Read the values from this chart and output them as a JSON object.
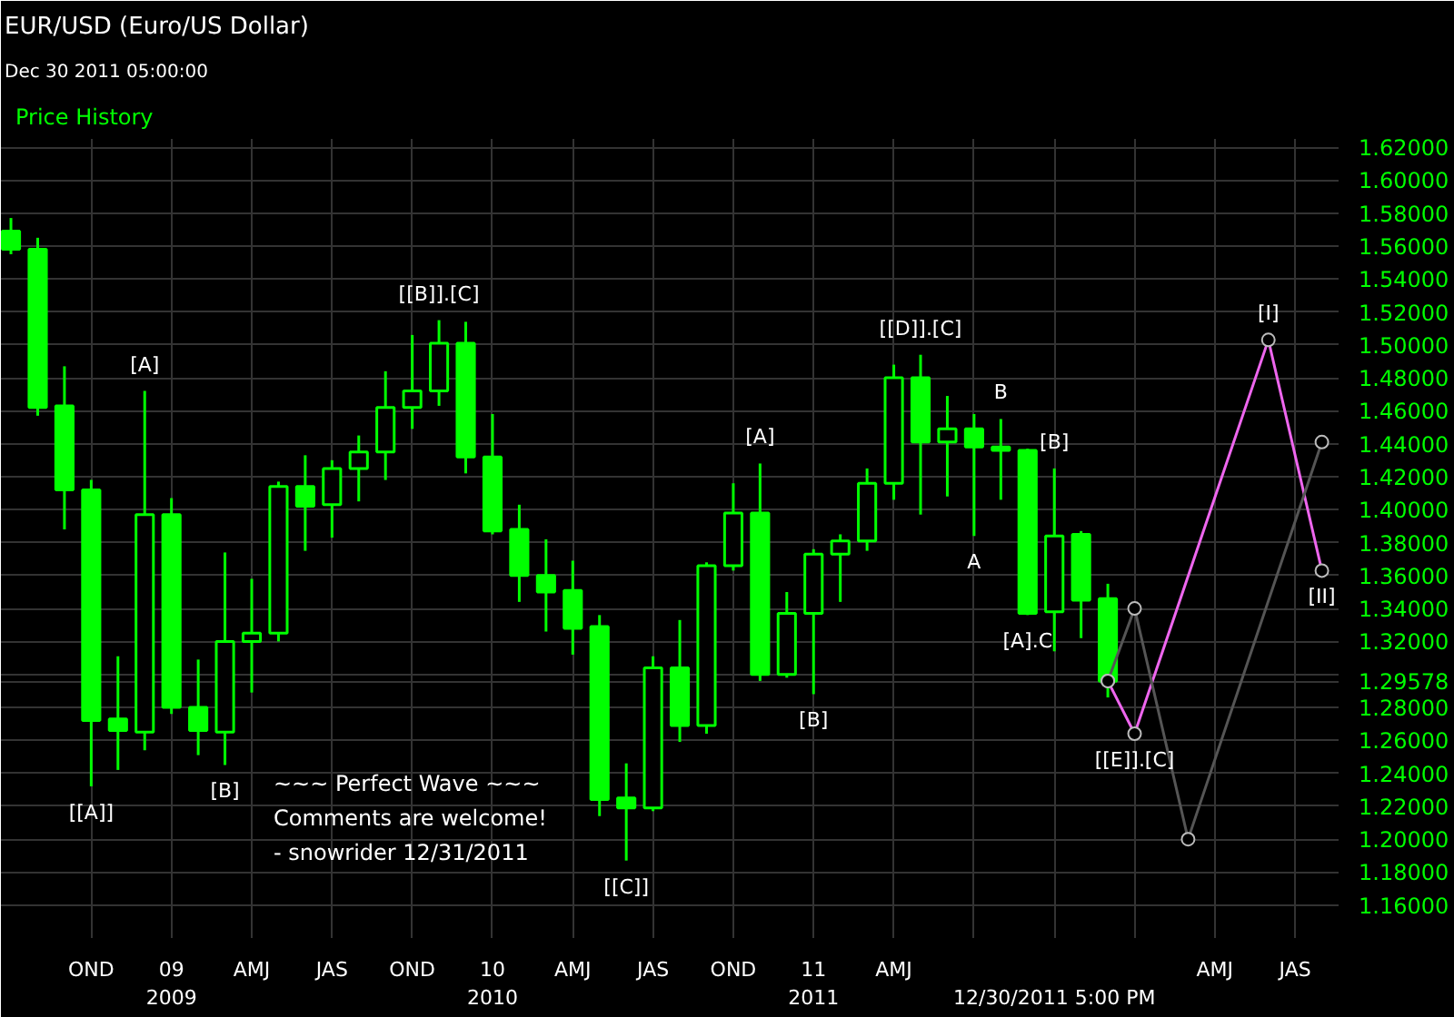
{
  "chart_data": {
    "type": "candlestick",
    "title": "EUR/USD (Euro/US Dollar)",
    "subtitle": "Dec 30 2011 05:00:00",
    "xlim": [
      "2008-06-20",
      "2012-08-20"
    ],
    "xticks": [
      {
        "value": "2008-10",
        "label": "OND"
      },
      {
        "value": "2009-01",
        "label": "09\n2009"
      },
      {
        "value": "2009-04",
        "label": "AMJ"
      },
      {
        "value": "2009-07",
        "label": "JAS"
      },
      {
        "value": "2009-10",
        "label": "OND"
      },
      {
        "value": "2010-01",
        "label": "10\n2010"
      },
      {
        "value": "2010-04",
        "label": "AMJ"
      },
      {
        "value": "2010-07",
        "label": "JAS"
      },
      {
        "value": "2010-10",
        "label": "OND"
      },
      {
        "value": "2011-01",
        "label": "11\n2011"
      },
      {
        "value": "2011-04",
        "label": "AMJ"
      },
      {
        "value": "2011-07",
        "label": null
      },
      {
        "value": "2011-10",
        "label": null
      },
      {
        "value": "2012-01",
        "label": null
      },
      {
        "value": "2012-04",
        "label": "AMJ"
      },
      {
        "value": "2012-07",
        "label": "JAS"
      }
    ],
    "ylim": [
      1.14,
      1.625
    ],
    "yticks": [
      {
        "value": 1.16,
        "label": "1.16000"
      },
      {
        "value": 1.18,
        "label": "1.18000"
      },
      {
        "value": 1.2,
        "label": "1.20000"
      },
      {
        "value": 1.22,
        "label": "1.22000"
      },
      {
        "value": 1.24,
        "label": "1.24000"
      },
      {
        "value": 1.26,
        "label": "1.26000"
      },
      {
        "value": 1.28,
        "label": "1.28000"
      },
      {
        "value": 1.29578,
        "label": "1.29578"
      },
      {
        "value": 1.3,
        "label": null
      },
      {
        "value": 1.32,
        "label": "1.32000"
      },
      {
        "value": 1.34,
        "label": "1.34000"
      },
      {
        "value": 1.36,
        "label": "1.36000"
      },
      {
        "value": 1.38,
        "label": "1.38000"
      },
      {
        "value": 1.4,
        "label": "1.40000"
      },
      {
        "value": 1.42,
        "label": "1.42000"
      },
      {
        "value": 1.44,
        "label": "1.44000"
      },
      {
        "value": 1.46,
        "label": "1.46000"
      },
      {
        "value": 1.48,
        "label": "1.48000"
      },
      {
        "value": 1.5,
        "label": "1.50000"
      },
      {
        "value": 1.52,
        "label": "1.52000"
      },
      {
        "value": 1.54,
        "label": "1.54000"
      },
      {
        "value": 1.56,
        "label": "1.56000"
      },
      {
        "value": 1.58,
        "label": "1.58000"
      },
      {
        "value": 1.6,
        "label": "1.60000"
      },
      {
        "value": 1.62,
        "label": "1.62000"
      }
    ],
    "grid": true,
    "series": [
      {
        "type": "candlestick",
        "color": "#00ff00",
        "x": [
          "2008-07",
          "2008-08",
          "2008-09",
          "2008-10",
          "2008-11",
          "2008-12",
          "2009-01",
          "2009-02",
          "2009-03",
          "2009-04",
          "2009-05",
          "2009-06",
          "2009-07",
          "2009-08",
          "2009-09",
          "2009-10",
          "2009-11",
          "2009-12",
          "2010-01",
          "2010-02",
          "2010-03",
          "2010-04",
          "2010-05",
          "2010-06",
          "2010-07",
          "2010-08",
          "2010-09",
          "2010-10",
          "2010-11",
          "2010-12",
          "2011-01",
          "2011-02",
          "2011-03",
          "2011-04",
          "2011-05",
          "2011-06",
          "2011-07",
          "2011-08",
          "2011-09",
          "2011-10",
          "2011-11",
          "2011-12"
        ],
        "ohlc": [
          [
            1.569,
            1.577,
            1.555,
            1.558
          ],
          [
            1.558,
            1.565,
            1.457,
            1.462
          ],
          [
            1.463,
            1.487,
            1.388,
            1.412
          ],
          [
            1.412,
            1.418,
            1.232,
            1.272
          ],
          [
            1.273,
            1.311,
            1.242,
            1.266
          ],
          [
            1.265,
            1.472,
            1.254,
            1.397
          ],
          [
            1.397,
            1.407,
            1.276,
            1.28
          ],
          [
            1.28,
            1.309,
            1.251,
            1.266
          ],
          [
            1.265,
            1.374,
            1.245,
            1.32
          ],
          [
            1.32,
            1.358,
            1.289,
            1.325
          ],
          [
            1.325,
            1.417,
            1.32,
            1.414
          ],
          [
            1.414,
            1.433,
            1.375,
            1.402
          ],
          [
            1.403,
            1.43,
            1.383,
            1.425
          ],
          [
            1.425,
            1.445,
            1.405,
            1.435
          ],
          [
            1.435,
            1.484,
            1.418,
            1.462
          ],
          [
            1.462,
            1.506,
            1.449,
            1.472
          ],
          [
            1.472,
            1.515,
            1.463,
            1.501
          ],
          [
            1.501,
            1.514,
            1.422,
            1.432
          ],
          [
            1.432,
            1.458,
            1.385,
            1.387
          ],
          [
            1.388,
            1.403,
            1.344,
            1.36
          ],
          [
            1.36,
            1.382,
            1.326,
            1.35
          ],
          [
            1.351,
            1.369,
            1.312,
            1.328
          ],
          [
            1.329,
            1.336,
            1.214,
            1.224
          ],
          [
            1.225,
            1.246,
            1.187,
            1.219
          ],
          [
            1.219,
            1.311,
            1.217,
            1.304
          ],
          [
            1.304,
            1.333,
            1.259,
            1.269
          ],
          [
            1.269,
            1.368,
            1.264,
            1.366
          ],
          [
            1.366,
            1.416,
            1.363,
            1.398
          ],
          [
            1.398,
            1.428,
            1.296,
            1.3
          ],
          [
            1.3,
            1.35,
            1.298,
            1.337
          ],
          [
            1.337,
            1.376,
            1.288,
            1.373
          ],
          [
            1.373,
            1.385,
            1.344,
            1.381
          ],
          [
            1.381,
            1.425,
            1.375,
            1.416
          ],
          [
            1.416,
            1.488,
            1.406,
            1.48
          ],
          [
            1.48,
            1.494,
            1.397,
            1.441
          ],
          [
            1.441,
            1.469,
            1.408,
            1.449
          ],
          [
            1.449,
            1.458,
            1.384,
            1.438
          ],
          [
            1.438,
            1.455,
            1.406,
            1.436
          ],
          [
            1.436,
            1.437,
            1.336,
            1.337
          ],
          [
            1.338,
            1.425,
            1.314,
            1.384
          ],
          [
            1.385,
            1.387,
            1.322,
            1.345
          ],
          [
            1.346,
            1.355,
            1.286,
            1.29578
          ]
        ]
      },
      {
        "type": "line",
        "color": "#ee66ee",
        "marker": "circle",
        "x": [
          "2011-12",
          "2012-01",
          "2012-06",
          "2012-08"
        ],
        "values": [
          1.296,
          1.264,
          1.503,
          1.363
        ]
      },
      {
        "type": "line",
        "color": "#555555",
        "marker": "circle",
        "x": [
          "2011-12",
          "2012-01",
          "2012-03",
          "2012-08"
        ],
        "values": [
          1.296,
          1.34,
          1.2,
          1.441
        ]
      }
    ],
    "annotations": [
      "Price History",
      "~~~ Perfect Wave ~~~\nComments are welcome!\n- snowrider  12/31/2011",
      "12/30/2011 5:00 PM",
      {
        "text": "[[A]]",
        "x": "2008-10",
        "y": 1.232
      },
      {
        "text": "[A]",
        "x": "2008-12",
        "y": 1.472
      },
      {
        "text": "[B]",
        "x": "2009-03",
        "y": 1.245
      },
      {
        "text": "[[B]].[C]",
        "x": "2009-11",
        "y": 1.515
      },
      {
        "text": "[[C]]",
        "x": "2010-06",
        "y": 1.187
      },
      {
        "text": "[A]",
        "x": "2010-11",
        "y": 1.428
      },
      {
        "text": "[B]",
        "x": "2011-01",
        "y": 1.288
      },
      {
        "text": "[[D]].[C]",
        "x": "2011-05",
        "y": 1.494
      },
      {
        "text": "A",
        "x": "2011-07",
        "y": 1.384
      },
      {
        "text": "B",
        "x": "2011-08",
        "y": 1.455
      },
      {
        "text": "[A].C",
        "x": "2011-09",
        "y": 1.336
      },
      {
        "text": "[B]",
        "x": "2011-10",
        "y": 1.425
      },
      {
        "text": "[[E]].[C]",
        "x": "2012-01",
        "y": 1.264
      },
      {
        "text": "[I]",
        "x": "2012-06",
        "y": 1.503
      },
      {
        "text": "[II]",
        "x": "2012-08",
        "y": 1.363
      }
    ]
  }
}
